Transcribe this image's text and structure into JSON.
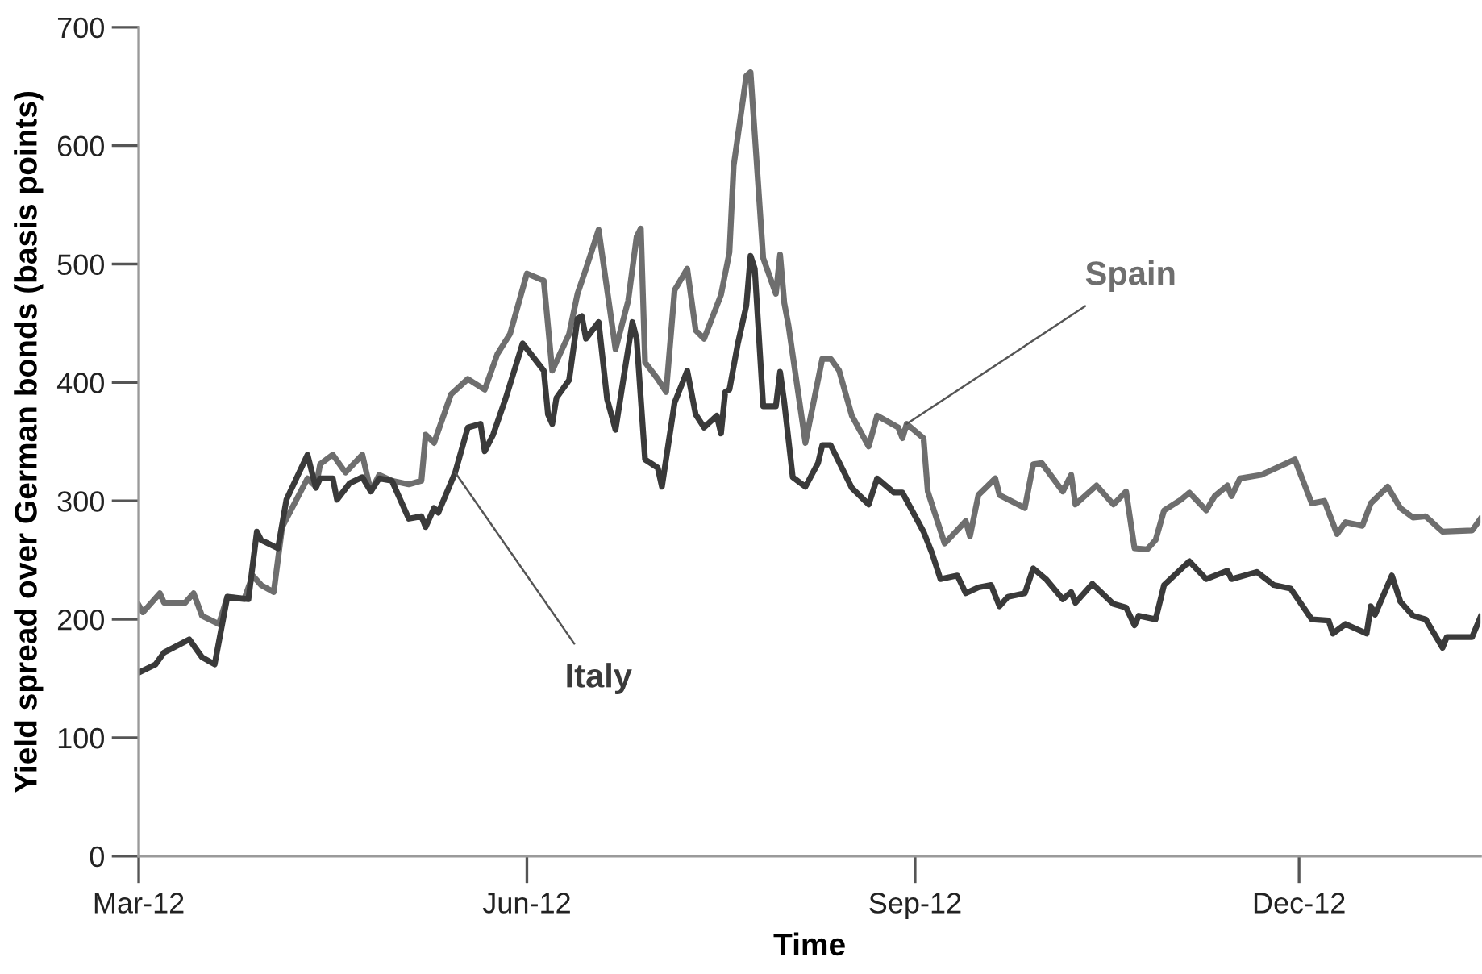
{
  "chart_data": {
    "type": "line",
    "xlabel": "Time",
    "ylabel": "Yield spread over German bonds (basis points)",
    "xlim": [
      "2012-03-01",
      "2013-01-13"
    ],
    "ylim": [
      0,
      700
    ],
    "yticks": [
      0,
      100,
      200,
      300,
      400,
      500,
      600,
      700
    ],
    "xticks": [
      {
        "value": "2012-03-01",
        "label": "Mar-12"
      },
      {
        "value": "2012-06-01",
        "label": "Jun-12"
      },
      {
        "value": "2012-09-01",
        "label": "Sep-12"
      },
      {
        "value": "2012-12-01",
        "label": "Dec-12"
      }
    ],
    "grid": false,
    "series": [
      {
        "name": "Spain",
        "color": "#6e6e6e",
        "x": [
          "2012-03-01",
          "2012-03-02",
          "2012-03-06",
          "2012-03-07",
          "2012-03-12",
          "2012-03-14",
          "2012-03-16",
          "2012-03-20",
          "2012-03-22",
          "2012-03-26",
          "2012-03-28",
          "2012-03-30",
          "2012-04-02",
          "2012-04-04",
          "2012-04-10",
          "2012-04-12",
          "2012-04-13",
          "2012-04-16",
          "2012-04-19",
          "2012-04-23",
          "2012-04-25",
          "2012-04-27",
          "2012-04-30",
          "2012-05-04",
          "2012-05-07",
          "2012-05-08",
          "2012-05-10",
          "2012-05-14",
          "2012-05-18",
          "2012-05-22",
          "2012-05-25",
          "2012-05-28",
          "2012-06-01",
          "2012-06-05",
          "2012-06-07",
          "2012-06-11",
          "2012-06-13",
          "2012-06-15",
          "2012-06-18",
          "2012-06-22",
          "2012-06-25",
          "2012-06-27",
          "2012-06-28",
          "2012-06-29",
          "2012-07-02",
          "2012-07-04",
          "2012-07-06",
          "2012-07-09",
          "2012-07-11",
          "2012-07-13",
          "2012-07-17",
          "2012-07-19",
          "2012-07-20",
          "2012-07-23",
          "2012-07-24",
          "2012-07-27",
          "2012-07-30",
          "2012-07-31",
          "2012-08-01",
          "2012-08-02",
          "2012-08-06",
          "2012-08-10",
          "2012-08-12",
          "2012-08-14",
          "2012-08-17",
          "2012-08-21",
          "2012-08-23",
          "2012-08-28",
          "2012-08-29",
          "2012-08-30",
          "2012-09-03",
          "2012-09-04",
          "2012-09-08",
          "2012-09-13",
          "2012-09-14",
          "2012-09-16",
          "2012-09-20",
          "2012-09-21",
          "2012-09-27",
          "2012-09-29",
          "2012-10-01",
          "2012-10-06",
          "2012-10-08",
          "2012-10-09",
          "2012-10-14",
          "2012-10-18",
          "2012-10-21",
          "2012-10-23",
          "2012-10-26",
          "2012-10-28",
          "2012-10-30",
          "2012-11-03",
          "2012-11-05",
          "2012-11-09",
          "2012-11-11",
          "2012-11-14",
          "2012-11-15",
          "2012-11-17",
          "2012-11-22",
          "2012-11-30",
          "2012-12-04",
          "2012-12-07",
          "2012-12-10",
          "2012-12-12",
          "2012-12-16",
          "2012-12-18",
          "2012-12-22",
          "2012-12-25",
          "2012-12-28",
          "2012-12-31",
          "2013-01-04",
          "2013-01-11",
          "2013-01-13"
        ],
        "values": [
          212,
          206,
          222,
          214,
          214,
          222,
          203,
          196,
          219,
          217,
          237,
          229,
          223,
          278,
          319,
          312,
          331,
          339,
          324,
          339,
          308,
          322,
          317,
          314,
          317,
          356,
          349,
          390,
          403,
          394,
          424,
          441,
          492,
          486,
          410,
          441,
          475,
          496,
          529,
          428,
          469,
          523,
          530,
          417,
          403,
          392,
          478,
          496,
          444,
          437,
          474,
          510,
          583,
          659,
          662,
          505,
          475,
          508,
          467,
          448,
          349,
          420,
          420,
          410,
          372,
          346,
          372,
          362,
          353,
          365,
          353,
          308,
          264,
          283,
          270,
          305,
          319,
          305,
          294,
          331,
          332,
          308,
          322,
          297,
          313,
          297,
          308,
          260,
          259,
          267,
          292,
          301,
          307,
          292,
          304,
          313,
          304,
          319,
          322,
          335,
          298,
          300,
          272,
          282,
          279,
          298,
          312,
          294,
          286,
          287,
          274,
          275,
          285
        ]
      },
      {
        "name": "Italy",
        "color": "#3a3a3a",
        "x": [
          "2012-03-01",
          "2012-03-05",
          "2012-03-07",
          "2012-03-13",
          "2012-03-16",
          "2012-03-19",
          "2012-03-22",
          "2012-03-27",
          "2012-03-29",
          "2012-03-30",
          "2012-04-03",
          "2012-04-05",
          "2012-04-10",
          "2012-04-12",
          "2012-04-13",
          "2012-04-16",
          "2012-04-17",
          "2012-04-20",
          "2012-04-23",
          "2012-04-25",
          "2012-04-27",
          "2012-04-30",
          "2012-05-04",
          "2012-05-07",
          "2012-05-08",
          "2012-05-10",
          "2012-05-11",
          "2012-05-15",
          "2012-05-18",
          "2012-05-21",
          "2012-05-22",
          "2012-05-24",
          "2012-05-27",
          "2012-05-31",
          "2012-06-05",
          "2012-06-06",
          "2012-06-07",
          "2012-06-08",
          "2012-06-11",
          "2012-06-13",
          "2012-06-14",
          "2012-06-15",
          "2012-06-18",
          "2012-06-20",
          "2012-06-22",
          "2012-06-24",
          "2012-06-26",
          "2012-06-27",
          "2012-06-29",
          "2012-07-02",
          "2012-07-03",
          "2012-07-06",
          "2012-07-09",
          "2012-07-11",
          "2012-07-13",
          "2012-07-16",
          "2012-07-17",
          "2012-07-18",
          "2012-07-19",
          "2012-07-21",
          "2012-07-23",
          "2012-07-24",
          "2012-07-25",
          "2012-07-27",
          "2012-07-30",
          "2012-07-31",
          "2012-08-01",
          "2012-08-03",
          "2012-08-06",
          "2012-08-09",
          "2012-08-10",
          "2012-08-12",
          "2012-08-17",
          "2012-08-21",
          "2012-08-23",
          "2012-08-27",
          "2012-08-29",
          "2012-09-03",
          "2012-09-05",
          "2012-09-07",
          "2012-09-11",
          "2012-09-13",
          "2012-09-16",
          "2012-09-19",
          "2012-09-21",
          "2012-09-23",
          "2012-09-27",
          "2012-09-29",
          "2012-10-02",
          "2012-10-06",
          "2012-10-08",
          "2012-10-09",
          "2012-10-13",
          "2012-10-18",
          "2012-10-21",
          "2012-10-23",
          "2012-10-24",
          "2012-10-28",
          "2012-10-30",
          "2012-11-05",
          "2012-11-09",
          "2012-11-14",
          "2012-11-15",
          "2012-11-21",
          "2012-11-25",
          "2012-11-29",
          "2012-12-04",
          "2012-12-08",
          "2012-12-09",
          "2012-12-12",
          "2012-12-17",
          "2012-12-18",
          "2012-12-19",
          "2012-12-23",
          "2012-12-25",
          "2012-12-28",
          "2012-12-31",
          "2013-01-04",
          "2013-01-05",
          "2013-01-11",
          "2013-01-13"
        ],
        "values": [
          155,
          162,
          172,
          183,
          168,
          162,
          219,
          217,
          274,
          267,
          260,
          301,
          339,
          311,
          319,
          319,
          301,
          315,
          320,
          308,
          319,
          317,
          285,
          287,
          278,
          294,
          290,
          324,
          362,
          365,
          342,
          356,
          387,
          433,
          410,
          373,
          365,
          387,
          402,
          454,
          456,
          437,
          451,
          386,
          360,
          406,
          451,
          437,
          335,
          328,
          312,
          383,
          410,
          373,
          362,
          372,
          357,
          392,
          394,
          433,
          465,
          507,
          496,
          380,
          380,
          409,
          383,
          320,
          312,
          332,
          347,
          347,
          311,
          297,
          319,
          307,
          307,
          274,
          256,
          234,
          237,
          222,
          227,
          229,
          211,
          219,
          222,
          243,
          234,
          217,
          223,
          214,
          230,
          213,
          210,
          195,
          203,
          200,
          229,
          249,
          234,
          241,
          234,
          240,
          229,
          226,
          200,
          199,
          188,
          196,
          188,
          211,
          204,
          237,
          215,
          203,
          200,
          176,
          185,
          185,
          202
        ]
      }
    ]
  }
}
